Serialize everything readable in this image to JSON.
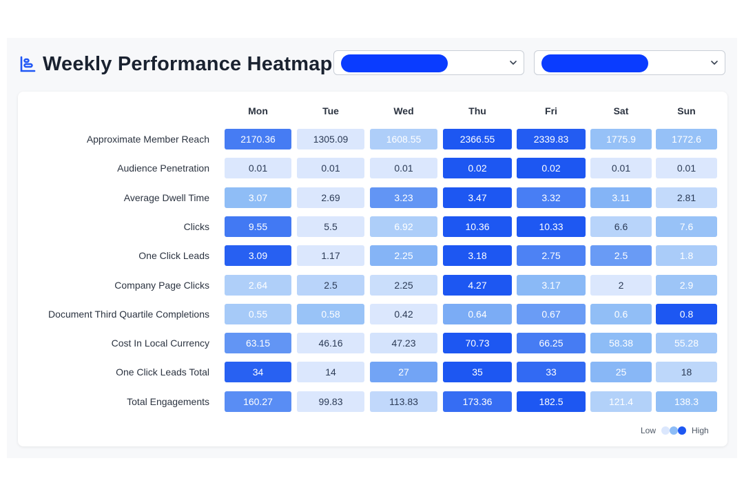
{
  "header": {
    "title": "Weekly Performance Heatmap",
    "icon": "chart-bars-icon",
    "accent": "#1f56f5"
  },
  "filters": [
    {
      "name": "filter-select-1",
      "selected_color": "#0a3cff"
    },
    {
      "name": "filter-select-2",
      "selected_color": "#0a3cff"
    }
  ],
  "chart_data": {
    "type": "heatmap",
    "x": [
      "Mon",
      "Tue",
      "Wed",
      "Thu",
      "Fri",
      "Sat",
      "Sun"
    ],
    "y": [
      "Approximate Member Reach",
      "Audience Penetration",
      "Average Dwell Time",
      "Clicks",
      "One Click Leads",
      "Company Page Clicks",
      "Document Third Quartile Completions",
      "Cost In Local Currency",
      "One Click Leads Total",
      "Total Engagements"
    ],
    "values": [
      [
        "2170.36",
        "1305.09",
        "1608.55",
        "2366.55",
        "2339.83",
        "1775.9",
        "1772.6"
      ],
      [
        "0.01",
        "0.01",
        "0.01",
        "0.02",
        "0.02",
        "0.01",
        "0.01"
      ],
      [
        "3.07",
        "2.69",
        "3.23",
        "3.47",
        "3.32",
        "3.11",
        "2.81"
      ],
      [
        "9.55",
        "5.5",
        "6.92",
        "10.36",
        "10.33",
        "6.6",
        "7.6"
      ],
      [
        "3.09",
        "1.17",
        "2.25",
        "3.18",
        "2.75",
        "2.5",
        "1.8"
      ],
      [
        "2.64",
        "2.5",
        "2.25",
        "4.27",
        "3.17",
        "2",
        "2.9"
      ],
      [
        "0.55",
        "0.58",
        "0.42",
        "0.64",
        "0.67",
        "0.6",
        "0.8"
      ],
      [
        "63.15",
        "46.16",
        "47.23",
        "70.73",
        "66.25",
        "58.38",
        "55.28"
      ],
      [
        "34",
        "14",
        "27",
        "35",
        "33",
        "25",
        "18"
      ],
      [
        "160.27",
        "99.83",
        "113.83",
        "173.36",
        "182.5",
        "121.4",
        "138.3"
      ]
    ],
    "color_scale": "per-row",
    "legend": {
      "low_label": "Low",
      "high_label": "High",
      "position": "bottom-right"
    },
    "colors": {
      "low": "#dbe7fd",
      "mid": "#8dbcf6",
      "high": "#1d57f2"
    }
  }
}
